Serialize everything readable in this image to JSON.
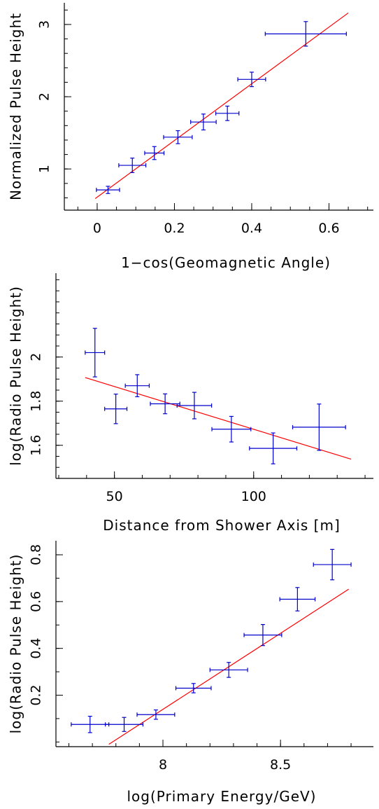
{
  "chart_data": [
    {
      "type": "scatter",
      "xlabel": "1−cos(Geomagnetic Angle)",
      "ylabel": "Normalized Pulse Height",
      "xlim": [
        -0.085,
        0.715
      ],
      "ylim": [
        0.43,
        3.3
      ],
      "xticks": [
        0,
        0.2,
        0.4,
        0.6
      ],
      "xtick_labels": [
        "0",
        "0.2",
        "0.4",
        "0.6"
      ],
      "yticks": [
        1,
        2,
        3
      ],
      "ytick_labels": [
        "1",
        "2",
        "3"
      ],
      "minor_x_step": 0.05,
      "minor_y_step": 0.2,
      "points": [
        {
          "x": 0.028,
          "y": 0.71,
          "xerr": [
            0.03,
            0.03
          ],
          "yerr": [
            0.05,
            0.05
          ]
        },
        {
          "x": 0.091,
          "y": 1.05,
          "xerr": [
            0.035,
            0.035
          ],
          "yerr": [
            0.1,
            0.1
          ]
        },
        {
          "x": 0.148,
          "y": 1.22,
          "xerr": [
            0.025,
            0.025
          ],
          "yerr": [
            0.09,
            0.09
          ]
        },
        {
          "x": 0.209,
          "y": 1.44,
          "xerr": [
            0.037,
            0.037
          ],
          "yerr": [
            0.09,
            0.09
          ]
        },
        {
          "x": 0.275,
          "y": 1.65,
          "xerr": [
            0.033,
            0.033
          ],
          "yerr": [
            0.11,
            0.11
          ]
        },
        {
          "x": 0.337,
          "y": 1.77,
          "xerr": [
            0.03,
            0.03
          ],
          "yerr": [
            0.1,
            0.1
          ]
        },
        {
          "x": 0.4,
          "y": 2.24,
          "xerr": [
            0.036,
            0.036
          ],
          "yerr": [
            0.1,
            0.1
          ]
        },
        {
          "x": 0.54,
          "y": 2.87,
          "xerr": [
            0.105,
            0.105
          ],
          "yerr": [
            0.17,
            0.17
          ]
        }
      ],
      "fit_line": {
        "x": [
          -0.005,
          0.65
        ],
        "y": [
          0.59,
          3.16
        ]
      }
    },
    {
      "type": "scatter",
      "xlabel": "Distance from Shower Axis [m]",
      "ylabel": "log(Radio Pulse Height)",
      "xlim": [
        29,
        143
      ],
      "ylim": [
        1.45,
        2.38
      ],
      "xticks": [
        50,
        100
      ],
      "xtick_labels": [
        "50",
        "100"
      ],
      "yticks": [
        1.6,
        1.8,
        2.0
      ],
      "ytick_labels": [
        "1.6",
        "1.8",
        "2"
      ],
      "minor_x_step": 10,
      "minor_y_step": 0.05,
      "points": [
        {
          "x": 43,
          "y": 2.02,
          "xerr": [
            3.5,
            3.5
          ],
          "yerr": [
            0.11,
            0.11
          ]
        },
        {
          "x": 50.5,
          "y": 1.765,
          "xerr": [
            4,
            4
          ],
          "yerr": [
            0.067,
            0.067
          ]
        },
        {
          "x": 58.2,
          "y": 1.87,
          "xerr": [
            4.3,
            4.3
          ],
          "yerr": [
            0.05,
            0.05
          ]
        },
        {
          "x": 68.2,
          "y": 1.788,
          "xerr": [
            5.3,
            5.3
          ],
          "yerr": [
            0.045,
            0.045
          ]
        },
        {
          "x": 78.7,
          "y": 1.78,
          "xerr": [
            6.2,
            6.2
          ],
          "yerr": [
            0.06,
            0.06
          ]
        },
        {
          "x": 92,
          "y": 1.673,
          "xerr": [
            7,
            7
          ],
          "yerr": [
            0.058,
            0.058
          ]
        },
        {
          "x": 107,
          "y": 1.586,
          "xerr": [
            8.5,
            8.5
          ],
          "yerr": [
            0.07,
            0.07
          ]
        },
        {
          "x": 123.5,
          "y": 1.682,
          "xerr": [
            9.5,
            9.5
          ],
          "yerr": [
            0.105,
            0.105
          ]
        }
      ],
      "fit_line": {
        "x": [
          39.5,
          135
        ],
        "y": [
          1.907,
          1.537
        ]
      }
    },
    {
      "type": "scatter",
      "xlabel": "log(Primary Energy/GeV)",
      "ylabel": "log(Radio Pulse Height)",
      "xlim": [
        7.545,
        8.895
      ],
      "ylim": [
        -0.02,
        0.86
      ],
      "xticks": [
        8,
        8.5
      ],
      "xtick_labels": [
        "8",
        "8.5"
      ],
      "yticks": [
        0.2,
        0.4,
        0.6,
        0.8
      ],
      "ytick_labels": [
        "0.2",
        "0.4",
        "0.6",
        "0.8"
      ],
      "minor_x_step": 0.1,
      "minor_y_step": 0.1,
      "points": [
        {
          "x": 7.69,
          "y": 0.075,
          "xerr": [
            0.08,
            0.08
          ],
          "yerr": [
            0.035,
            0.035
          ]
        },
        {
          "x": 7.835,
          "y": 0.075,
          "xerr": [
            0.08,
            0.08
          ],
          "yerr": [
            0.03,
            0.03
          ]
        },
        {
          "x": 7.97,
          "y": 0.117,
          "xerr": [
            0.08,
            0.08
          ],
          "yerr": [
            0.02,
            0.02
          ]
        },
        {
          "x": 8.13,
          "y": 0.23,
          "xerr": [
            0.075,
            0.075
          ],
          "yerr": [
            0.02,
            0.02
          ]
        },
        {
          "x": 8.28,
          "y": 0.308,
          "xerr": [
            0.08,
            0.08
          ],
          "yerr": [
            0.032,
            0.032
          ]
        },
        {
          "x": 8.425,
          "y": 0.457,
          "xerr": [
            0.08,
            0.08
          ],
          "yerr": [
            0.045,
            0.045
          ]
        },
        {
          "x": 8.572,
          "y": 0.61,
          "xerr": [
            0.075,
            0.075
          ],
          "yerr": [
            0.05,
            0.05
          ]
        },
        {
          "x": 8.72,
          "y": 0.758,
          "xerr": [
            0.08,
            0.08
          ],
          "yerr": [
            0.065,
            0.065
          ]
        }
      ],
      "fit_line": {
        "x": [
          7.77,
          8.79
        ],
        "y": [
          -0.01,
          0.653
        ]
      }
    }
  ],
  "colors": {
    "data": "#0000cc",
    "fit": "#ff0000",
    "axes": "#000000"
  }
}
